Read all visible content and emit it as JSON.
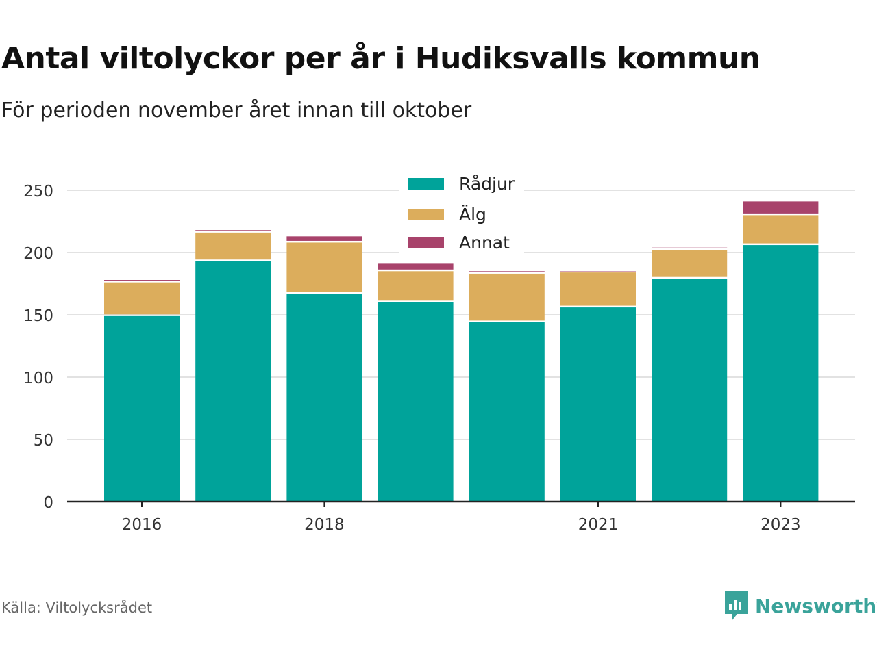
{
  "chart_data": {
    "type": "bar",
    "stacked": true,
    "title": "Antal viltolyckor per år i Hudiksvalls kommun",
    "subtitle": "För perioden november året innan till oktober",
    "categories": [
      "2016",
      "2017",
      "2018",
      "2019",
      "2020",
      "2021",
      "2022",
      "2023"
    ],
    "x_tick_labels": [
      "2016",
      "",
      "2018",
      "",
      "",
      "2021",
      "",
      "2023"
    ],
    "y_ticks": [
      0,
      50,
      100,
      150,
      200,
      250
    ],
    "ylim": [
      0,
      250
    ],
    "grid": true,
    "legend_position": "top-center",
    "series": [
      {
        "name": "Rådjur",
        "color": "#00a39a",
        "values": [
          149,
          193,
          167,
          160,
          144,
          156,
          179,
          206
        ]
      },
      {
        "name": "Älg",
        "color": "#dcad5c",
        "values": [
          27,
          23,
          41,
          25,
          39,
          28,
          23,
          24
        ]
      },
      {
        "name": "Annat",
        "color": "#a8436b",
        "values": [
          2,
          2,
          5,
          6,
          2,
          1,
          2,
          11
        ]
      }
    ]
  },
  "footer": {
    "source": "Källa: Viltolycksrådet",
    "brand": "Newsworthy",
    "brand_icon": "bar-chart-icon"
  }
}
